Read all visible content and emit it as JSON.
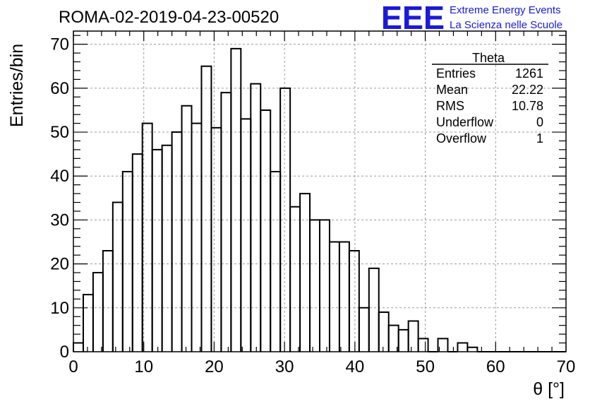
{
  "header": {
    "title": "ROMA-02-2019-04-23-00520",
    "logo_text": "EEE",
    "logo_line1": "Extreme Energy Events",
    "logo_line2": "La Scienza nelle Scuole",
    "logo_color": "#1a1adb"
  },
  "stats": {
    "name": "Theta",
    "rows": [
      {
        "label": "Entries",
        "value": "1261"
      },
      {
        "label": "Mean",
        "value": "22.22"
      },
      {
        "label": "RMS",
        "value": "10.78"
      },
      {
        "label": "Underflow",
        "value": "0"
      },
      {
        "label": "Overflow",
        "value": "1"
      }
    ]
  },
  "chart_data": {
    "type": "bar",
    "title": "ROMA-02-2019-04-23-00520",
    "xlabel": "θ [°]",
    "ylabel": "Entries/bin",
    "xlim": [
      0,
      70
    ],
    "ylim": [
      0,
      73
    ],
    "bin_width": 1.4,
    "bin_edges_start": 0,
    "x_ticks": [
      0,
      10,
      20,
      30,
      40,
      50,
      60,
      70
    ],
    "y_ticks": [
      0,
      10,
      20,
      30,
      40,
      50,
      60,
      70
    ],
    "grid": true,
    "values": [
      2,
      13,
      18,
      23,
      34,
      41,
      45,
      52,
      46,
      47,
      50,
      56,
      52,
      65,
      51,
      59,
      69,
      53,
      61,
      55,
      41,
      60,
      33,
      36,
      30,
      30,
      25,
      25,
      23,
      10,
      19,
      9,
      6,
      5,
      7,
      3,
      0,
      3,
      0,
      2,
      1,
      0,
      0,
      0,
      0,
      0,
      0,
      0,
      0,
      0
    ],
    "line_color": "#000000"
  }
}
